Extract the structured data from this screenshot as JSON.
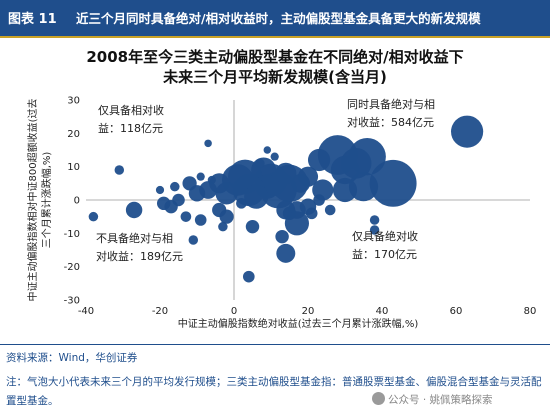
{
  "header": {
    "figure_label": "图表 11",
    "title": "近三个月同时具备绝对/相对收益时，主动偏股型基金具备更大的新发规模"
  },
  "chart_data": {
    "type": "scatter",
    "title_line1": "2008年至今三类主动偏股型基金在不同绝对/相对收益下",
    "title_line2": "未来三个月平均新发规模(含当月)",
    "xlabel": "中证主动偏股指数绝对收益(过去三个月累计涨跌幅,%)",
    "ylabel": "中证主动偏股指数相对中证800超额收益(过去三个月累计涨跌幅,%)",
    "ylabel_line1": "中证主动偏股指数相对中证800超额收益(过去",
    "ylabel_line2": "三个月累计涨跌幅,%)",
    "xlim": [
      -40,
      80
    ],
    "ylim": [
      -30,
      30
    ],
    "xticks": [
      -40,
      -20,
      0,
      20,
      40,
      60,
      80
    ],
    "yticks": [
      -30,
      -20,
      -10,
      0,
      10,
      20,
      30
    ],
    "color": "#1f4e8c",
    "grid": false,
    "annotations": [
      {
        "lines": [
          "仅具备相对收",
          "益：118亿元"
        ],
        "quadrant": "top-left"
      },
      {
        "lines": [
          "同时具备绝对与相",
          "对收益：584亿元"
        ],
        "quadrant": "top-right"
      },
      {
        "lines": [
          "不具备绝对与相",
          "对收益：189亿元"
        ],
        "quadrant": "bottom-left"
      },
      {
        "lines": [
          "仅具备绝对收",
          "益：170亿元"
        ],
        "quadrant": "bottom-right"
      }
    ],
    "points": [
      {
        "x": 63,
        "y": 20.5,
        "size": 460
      },
      {
        "x": 43,
        "y": 5,
        "size": 980
      },
      {
        "x": 36,
        "y": 13,
        "size": 620
      },
      {
        "x": 33,
        "y": 11,
        "size": 420
      },
      {
        "x": 30,
        "y": 9,
        "size": 360
      },
      {
        "x": 28,
        "y": 13.5,
        "size": 700
      },
      {
        "x": 35,
        "y": 4,
        "size": 380
      },
      {
        "x": 30,
        "y": 3,
        "size": 260
      },
      {
        "x": 23,
        "y": 12,
        "size": 220
      },
      {
        "x": 24,
        "y": 3,
        "size": 200
      },
      {
        "x": 20,
        "y": 7,
        "size": 180
      },
      {
        "x": 18,
        "y": 5,
        "size": 160
      },
      {
        "x": 15,
        "y": 5,
        "size": 620
      },
      {
        "x": 12,
        "y": 3,
        "size": 600
      },
      {
        "x": 10,
        "y": 6,
        "size": 480
      },
      {
        "x": 14,
        "y": 8,
        "size": 200
      },
      {
        "x": 8,
        "y": 9,
        "size": 280
      },
      {
        "x": 9,
        "y": 4,
        "size": 260
      },
      {
        "x": 3,
        "y": 7,
        "size": 520
      },
      {
        "x": 4,
        "y": 3,
        "size": 460
      },
      {
        "x": 1,
        "y": 6,
        "size": 440
      },
      {
        "x": 6,
        "y": 1,
        "size": 260
      },
      {
        "x": -2,
        "y": 2,
        "size": 220
      },
      {
        "x": -4,
        "y": 5,
        "size": 180
      },
      {
        "x": -7,
        "y": 3,
        "size": 140
      },
      {
        "x": -10,
        "y": 2,
        "size": 120
      },
      {
        "x": -12,
        "y": 5,
        "size": 90
      },
      {
        "x": -15,
        "y": 0,
        "size": 70
      },
      {
        "x": -19,
        "y": -1,
        "size": 80
      },
      {
        "x": -27,
        "y": -3,
        "size": 120
      },
      {
        "x": -38,
        "y": -5,
        "size": 40
      },
      {
        "x": -31,
        "y": 9,
        "size": 40
      },
      {
        "x": -16,
        "y": 4,
        "size": 40
      },
      {
        "x": -20,
        "y": 3,
        "size": 30
      },
      {
        "x": -9,
        "y": 7,
        "size": 30
      },
      {
        "x": -6,
        "y": 6,
        "size": 30
      },
      {
        "x": 7,
        "y": 11,
        "size": 40
      },
      {
        "x": 11,
        "y": 13,
        "size": 30
      },
      {
        "x": 9,
        "y": 15,
        "size": 25
      },
      {
        "x": -7,
        "y": 17,
        "size": 25
      },
      {
        "x": 14,
        "y": -3,
        "size": 160
      },
      {
        "x": 17,
        "y": -3,
        "size": 140
      },
      {
        "x": 15,
        "y": -4,
        "size": 80
      },
      {
        "x": 13,
        "y": -11,
        "size": 80
      },
      {
        "x": 17,
        "y": -7,
        "size": 260
      },
      {
        "x": 14,
        "y": -16,
        "size": 160
      },
      {
        "x": 20,
        "y": -2,
        "size": 120
      },
      {
        "x": 21,
        "y": -4,
        "size": 60
      },
      {
        "x": 23,
        "y": 0,
        "size": 60
      },
      {
        "x": 26,
        "y": -3,
        "size": 50
      },
      {
        "x": 38,
        "y": -9,
        "size": 40
      },
      {
        "x": 38,
        "y": -6,
        "size": 40
      },
      {
        "x": 5,
        "y": -8,
        "size": 80
      },
      {
        "x": 2,
        "y": -1,
        "size": 50
      },
      {
        "x": 4,
        "y": -23,
        "size": 60
      },
      {
        "x": -4,
        "y": -3,
        "size": 90
      },
      {
        "x": -2,
        "y": -5,
        "size": 90
      },
      {
        "x": -13,
        "y": -5,
        "size": 50
      },
      {
        "x": -17,
        "y": -2,
        "size": 80
      },
      {
        "x": -9,
        "y": -6,
        "size": 60
      },
      {
        "x": -3,
        "y": -8,
        "size": 40
      },
      {
        "x": -11,
        "y": -12,
        "size": 40
      }
    ]
  },
  "source": "资料来源：Wind，华创证券",
  "note": "注：气泡大小代表未来三个月的平均发行规模；三类主动偏股型基金指：普通股票型基金、偏股混合型基金与灵活配置型基金。",
  "watermark": "公众号 · 姚佩策略探索"
}
